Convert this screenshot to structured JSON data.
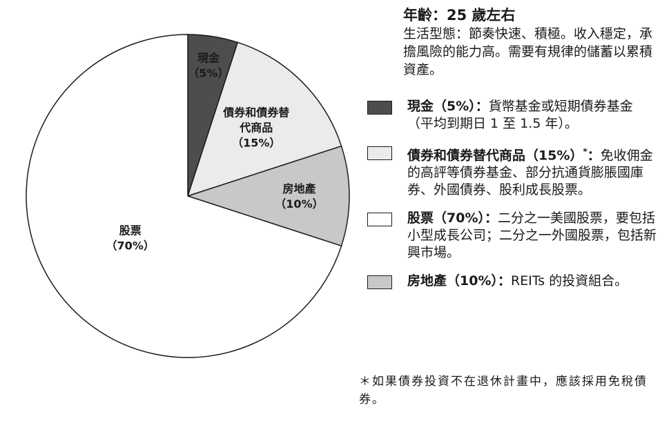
{
  "chart_data": {
    "type": "pie",
    "slices": [
      {
        "name": "現金",
        "label_lines": [
          "現金",
          "（5%）"
        ],
        "value": 5,
        "color": "#4d4d4d"
      },
      {
        "name": "債券和債券替代商品",
        "label_lines": [
          "債券和債券替",
          "代商品",
          "（15%）"
        ],
        "value": 15,
        "color": "#ebebeb"
      },
      {
        "name": "房地產",
        "label_lines": [
          "房地產",
          "（10%）"
        ],
        "value": 10,
        "color": "#c8c8c8"
      },
      {
        "name": "股票",
        "label_lines": [
          "股票",
          "（70%）"
        ],
        "value": 70,
        "color": "#ffffff"
      }
    ]
  },
  "profile": {
    "title": "年齡：25 歲左右",
    "description": "生活型態：節奏快速、積極。收入穩定，承擔風險的能力高。需要有規律的儲蓄以累積資產。"
  },
  "legend": [
    {
      "name": "現金（5%）",
      "separator": "：",
      "text": "貨幣基金或短期債券基金（平均到期日 1 至 1.5 年）。",
      "color": "#4d4d4d"
    },
    {
      "name": "債券和債券替代商品（15%）",
      "marker": "*",
      "separator": "：",
      "text": "免收佣金的高評等債券基金、部分抗通貨膨脹國庫券、外國債券、股利成長股票。",
      "color": "#ebebeb"
    },
    {
      "name": "股票（70%）",
      "separator": "：",
      "text": "二分之一美國股票，要包括小型成長公司；二分之一外國股票，包括新興市場。",
      "color": "#ffffff"
    },
    {
      "name": "房地產（10%）",
      "separator": "：",
      "text": "REITs 的投資組合。",
      "color": "#c8c8c8"
    }
  ],
  "footnote": "＊如果債券投資不在退休計畫中，應該採用免稅債券。"
}
